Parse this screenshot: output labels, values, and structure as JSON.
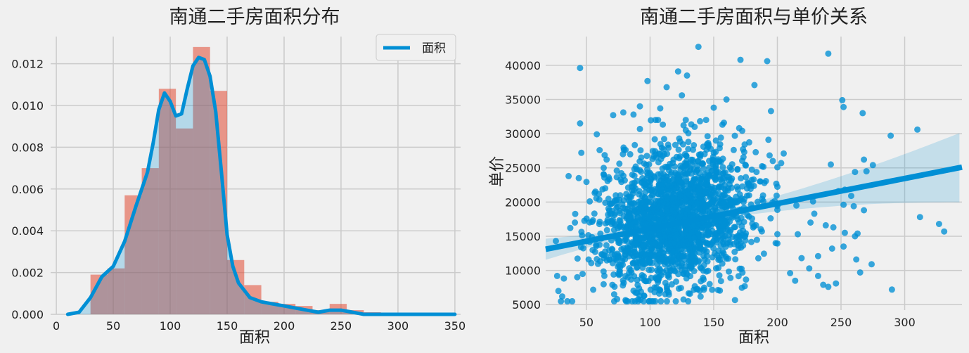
{
  "chart_data": [
    {
      "type": "bar",
      "title": "南通二手房面积分布",
      "xlabel": "面积",
      "ylabel": "",
      "xlim": [
        -5,
        355
      ],
      "ylim": [
        0,
        0.0133
      ],
      "xticks": [
        0,
        50,
        100,
        150,
        200,
        250,
        300,
        350
      ],
      "yticks": [
        0.0,
        0.002,
        0.004,
        0.006,
        0.008,
        0.01,
        0.012
      ],
      "ytick_labels": [
        "0.000",
        "0.002",
        "0.004",
        "0.006",
        "0.008",
        "0.010",
        "0.012"
      ],
      "grid": true,
      "legend": "upper-right",
      "histogram": {
        "bin_edges": [
          30,
          45,
          60,
          75,
          90,
          105,
          120,
          135,
          150,
          165,
          180,
          195,
          210,
          225,
          240,
          255,
          270,
          285,
          300,
          315,
          330,
          345
        ],
        "values": [
          0.0019,
          0.0022,
          0.0057,
          0.007,
          0.0108,
          0.0089,
          0.0128,
          0.0107,
          0.0026,
          0.0014,
          0.0006,
          0.0005,
          0.0004,
          0.0002,
          0.0005,
          0.0002,
          0.0001,
          0.0,
          0.0,
          0.0,
          0.0
        ],
        "color": "#e24a33"
      },
      "kde": {
        "name": "面积",
        "color": "#008fd5",
        "x": [
          10,
          20,
          30,
          40,
          50,
          60,
          70,
          80,
          85,
          90,
          95,
          100,
          105,
          110,
          115,
          120,
          125,
          130,
          135,
          140,
          145,
          150,
          155,
          160,
          170,
          180,
          190,
          200,
          210,
          220,
          230,
          240,
          250,
          260,
          270,
          280,
          300,
          320,
          350
        ],
        "y": [
          0.0,
          0.0001,
          0.0008,
          0.0018,
          0.0023,
          0.0035,
          0.0052,
          0.0068,
          0.0082,
          0.0098,
          0.0106,
          0.0102,
          0.0095,
          0.0096,
          0.0108,
          0.0119,
          0.0123,
          0.0122,
          0.0114,
          0.0097,
          0.0068,
          0.0038,
          0.0023,
          0.0015,
          0.0008,
          0.0006,
          0.0005,
          0.0004,
          0.0003,
          0.0002,
          0.0001,
          0.0002,
          0.0002,
          0.0001,
          0.0,
          0.0,
          0.0,
          0.0,
          0.0
        ]
      }
    },
    {
      "type": "scatter",
      "title": "南通二手房面积与单价关系",
      "xlabel": "面积",
      "ylabel": "单价",
      "xlim": [
        18,
        345
      ],
      "ylim": [
        4200,
        44200
      ],
      "xticks": [
        50,
        100,
        150,
        200,
        250,
        300
      ],
      "yticks": [
        5000,
        10000,
        15000,
        20000,
        25000,
        30000,
        35000,
        40000
      ],
      "grid": true,
      "color": "#008fd5",
      "regression": {
        "x": [
          18,
          345
        ],
        "y": [
          13100,
          25100
        ]
      },
      "outliers": [
        {
          "x": 45,
          "y": 39600
        },
        {
          "x": 138,
          "y": 42700
        },
        {
          "x": 171,
          "y": 40800
        },
        {
          "x": 192,
          "y": 40600
        },
        {
          "x": 240,
          "y": 41700
        },
        {
          "x": 122,
          "y": 39100
        },
        {
          "x": 98,
          "y": 37700
        },
        {
          "x": 182,
          "y": 37100
        },
        {
          "x": 251,
          "y": 34900
        },
        {
          "x": 252,
          "y": 33900
        },
        {
          "x": 267,
          "y": 33000
        },
        {
          "x": 195,
          "y": 33300
        },
        {
          "x": 310,
          "y": 30600
        },
        {
          "x": 289,
          "y": 29700
        },
        {
          "x": 268,
          "y": 26200
        },
        {
          "x": 275,
          "y": 25400
        },
        {
          "x": 270,
          "y": 24500
        },
        {
          "x": 261,
          "y": 24400
        },
        {
          "x": 242,
          "y": 25500
        },
        {
          "x": 248,
          "y": 21600
        },
        {
          "x": 253,
          "y": 21800
        },
        {
          "x": 258,
          "y": 20900
        },
        {
          "x": 252,
          "y": 19600
        },
        {
          "x": 260,
          "y": 19400
        },
        {
          "x": 268,
          "y": 18800
        },
        {
          "x": 312,
          "y": 17800
        },
        {
          "x": 327,
          "y": 16800
        },
        {
          "x": 331,
          "y": 15700
        },
        {
          "x": 263,
          "y": 15400
        },
        {
          "x": 261,
          "y": 15000
        },
        {
          "x": 253,
          "y": 15500
        },
        {
          "x": 238,
          "y": 16600
        },
        {
          "x": 244,
          "y": 16300
        },
        {
          "x": 252,
          "y": 13500
        },
        {
          "x": 243,
          "y": 13200
        },
        {
          "x": 262,
          "y": 11600
        },
        {
          "x": 274,
          "y": 10900
        },
        {
          "x": 265,
          "y": 9700
        },
        {
          "x": 246,
          "y": 8100
        },
        {
          "x": 240,
          "y": 7600
        },
        {
          "x": 290,
          "y": 7200
        },
        {
          "x": 45,
          "y": 31500
        },
        {
          "x": 46,
          "y": 27200
        },
        {
          "x": 36,
          "y": 23800
        },
        {
          "x": 44,
          "y": 23500
        },
        {
          "x": 41,
          "y": 17000
        },
        {
          "x": 26,
          "y": 14300
        },
        {
          "x": 27,
          "y": 9200
        },
        {
          "x": 28,
          "y": 7000
        },
        {
          "x": 31,
          "y": 6200
        },
        {
          "x": 35,
          "y": 5500
        },
        {
          "x": 229,
          "y": 18300
        },
        {
          "x": 215,
          "y": 19500
        },
        {
          "x": 228,
          "y": 20100
        },
        {
          "x": 226,
          "y": 17000
        },
        {
          "x": 216,
          "y": 15300
        },
        {
          "x": 232,
          "y": 12100
        },
        {
          "x": 219,
          "y": 11800
        },
        {
          "x": 225,
          "y": 10300
        },
        {
          "x": 210,
          "y": 9600
        },
        {
          "x": 214,
          "y": 8500
        },
        {
          "x": 232,
          "y": 9200
        },
        {
          "x": 236,
          "y": 7900
        },
        {
          "x": 150,
          "y": 33800
        },
        {
          "x": 160,
          "y": 35000
        },
        {
          "x": 113,
          "y": 36800
        },
        {
          "x": 129,
          "y": 38500
        },
        {
          "x": 71,
          "y": 32700
        },
        {
          "x": 79,
          "y": 33100
        },
        {
          "x": 92,
          "y": 34000
        },
        {
          "x": 87,
          "y": 32800
        },
        {
          "x": 108,
          "y": 33700
        },
        {
          "x": 125,
          "y": 35600
        },
        {
          "x": 158,
          "y": 31600
        },
        {
          "x": 170,
          "y": 30800
        },
        {
          "x": 193,
          "y": 29100
        },
        {
          "x": 205,
          "y": 27100
        },
        {
          "x": 203,
          "y": 25700
        },
        {
          "x": 183,
          "y": 27300
        },
        {
          "x": 177,
          "y": 22700
        }
      ],
      "cloud": {
        "seed": 7,
        "count": 1900,
        "cx": 120,
        "sx": 30,
        "x_min": 30,
        "x_max": 200,
        "cy": 17500,
        "sy": 5000,
        "y_min": 5500,
        "y_max": 32000
      }
    }
  ]
}
